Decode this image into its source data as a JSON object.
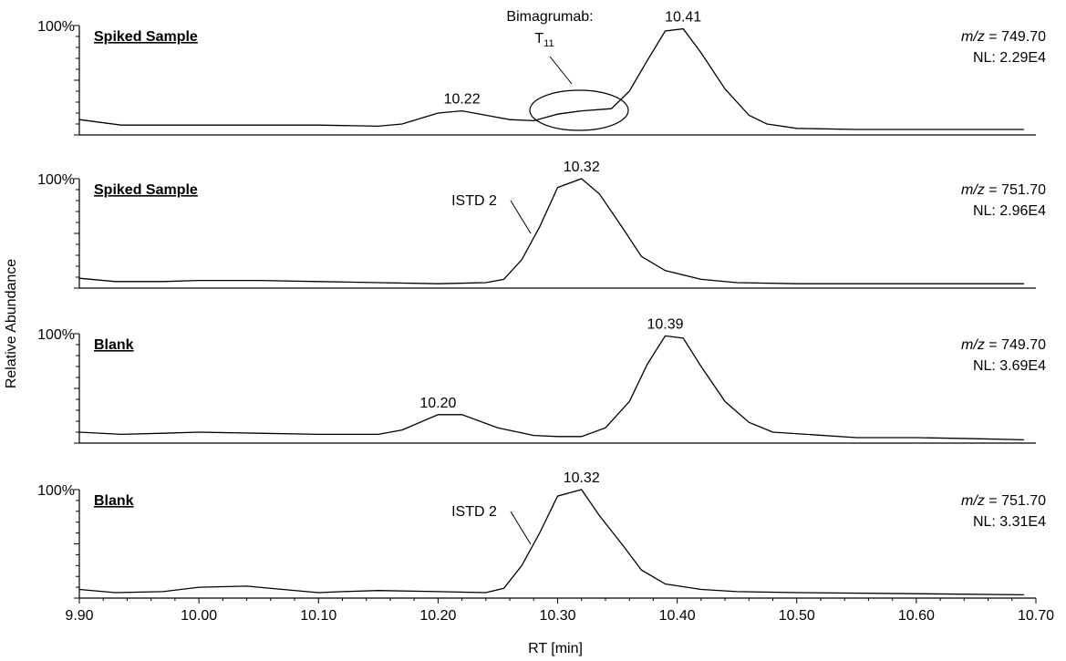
{
  "chart_data": {
    "type": "line",
    "xlabel": "RT [min]",
    "ylabel": "Relative Abundance",
    "xlim": [
      9.9,
      10.7
    ],
    "xticks": [
      "9.90",
      "10.00",
      "10.10",
      "10.20",
      "10.30",
      "10.40",
      "10.50",
      "10.60",
      "10.70"
    ],
    "panels": [
      {
        "title": "Spiked Sample",
        "ymax_label": "100%",
        "mz_label": "m/z",
        "mz_value": " = 749.70",
        "nl": "NL: 2.29E4",
        "x": [
          9.9,
          9.935,
          9.97,
          10.0,
          10.05,
          10.1,
          10.15,
          10.17,
          10.2,
          10.22,
          10.24,
          10.26,
          10.28,
          10.3,
          10.32,
          10.345,
          10.36,
          10.375,
          10.39,
          10.405,
          10.42,
          10.44,
          10.46,
          10.475,
          10.5,
          10.55,
          10.6,
          10.65,
          10.69
        ],
        "y": [
          14,
          9,
          9,
          9,
          9,
          9,
          8,
          10,
          20,
          22,
          18,
          14,
          13,
          19,
          22,
          24,
          40,
          68,
          95,
          97,
          75,
          42,
          18,
          10,
          6,
          5,
          5,
          5,
          5
        ],
        "peaks": [
          {
            "x": 10.22,
            "y": 22,
            "label": "10.22"
          },
          {
            "x": 10.405,
            "y": 97,
            "label": "10.41"
          }
        ],
        "annotation": {
          "text": "Bimagrumab:",
          "sub_main": "T",
          "sub_index": "11"
        }
      },
      {
        "title": "Spiked Sample",
        "ymax_label": "100%",
        "mz_label": "m/z",
        "mz_value": " = 751.70",
        "nl": "NL: 2.96E4",
        "x": [
          9.9,
          9.93,
          9.97,
          10.0,
          10.05,
          10.1,
          10.15,
          10.2,
          10.24,
          10.255,
          10.27,
          10.285,
          10.3,
          10.32,
          10.335,
          10.355,
          10.37,
          10.39,
          10.42,
          10.45,
          10.5,
          10.6,
          10.69
        ],
        "y": [
          9,
          6,
          6,
          7,
          7,
          6,
          5,
          4,
          5,
          8,
          26,
          56,
          92,
          100,
          86,
          54,
          29,
          16,
          8,
          5,
          4,
          4,
          4
        ],
        "peaks": [
          {
            "x": 10.32,
            "y": 100,
            "label": "10.32"
          }
        ],
        "annotation": {
          "text": "ISTD 2"
        }
      },
      {
        "title": "Blank",
        "ymax_label": "100%",
        "mz_label": "m/z",
        "mz_value": " = 749.70",
        "nl": "NL: 3.69E4",
        "x": [
          9.9,
          9.935,
          9.97,
          10.0,
          10.05,
          10.1,
          10.15,
          10.17,
          10.2,
          10.22,
          10.25,
          10.28,
          10.3,
          10.32,
          10.34,
          10.36,
          10.375,
          10.39,
          10.405,
          10.42,
          10.44,
          10.46,
          10.48,
          10.55,
          10.6,
          10.65,
          10.69
        ],
        "y": [
          10,
          8,
          9,
          10,
          9,
          8,
          8,
          12,
          26,
          26,
          14,
          7,
          6,
          6,
          14,
          38,
          72,
          98,
          96,
          70,
          38,
          19,
          10,
          5,
          5,
          4,
          3
        ],
        "peaks": [
          {
            "x": 10.2,
            "y": 26,
            "label": "10.20"
          },
          {
            "x": 10.39,
            "y": 98,
            "label": "10.39"
          }
        ]
      },
      {
        "title": "Blank",
        "ymax_label": "100%",
        "mz_label": "m/z",
        "mz_value": " = 751.70",
        "nl": "NL: 3.31E4",
        "x": [
          9.9,
          9.93,
          9.97,
          10.0,
          10.04,
          10.07,
          10.1,
          10.12,
          10.15,
          10.2,
          10.24,
          10.255,
          10.27,
          10.285,
          10.3,
          10.32,
          10.335,
          10.355,
          10.37,
          10.39,
          10.42,
          10.45,
          10.5,
          10.6,
          10.69
        ],
        "y": [
          8,
          5,
          6,
          10,
          11,
          8,
          5,
          6,
          7,
          6,
          5,
          9,
          30,
          60,
          94,
          100,
          76,
          48,
          26,
          13,
          8,
          6,
          5,
          4,
          3
        ],
        "peaks": [
          {
            "x": 10.32,
            "y": 100,
            "label": "10.32"
          }
        ],
        "annotation": {
          "text": "ISTD 2"
        }
      }
    ]
  }
}
